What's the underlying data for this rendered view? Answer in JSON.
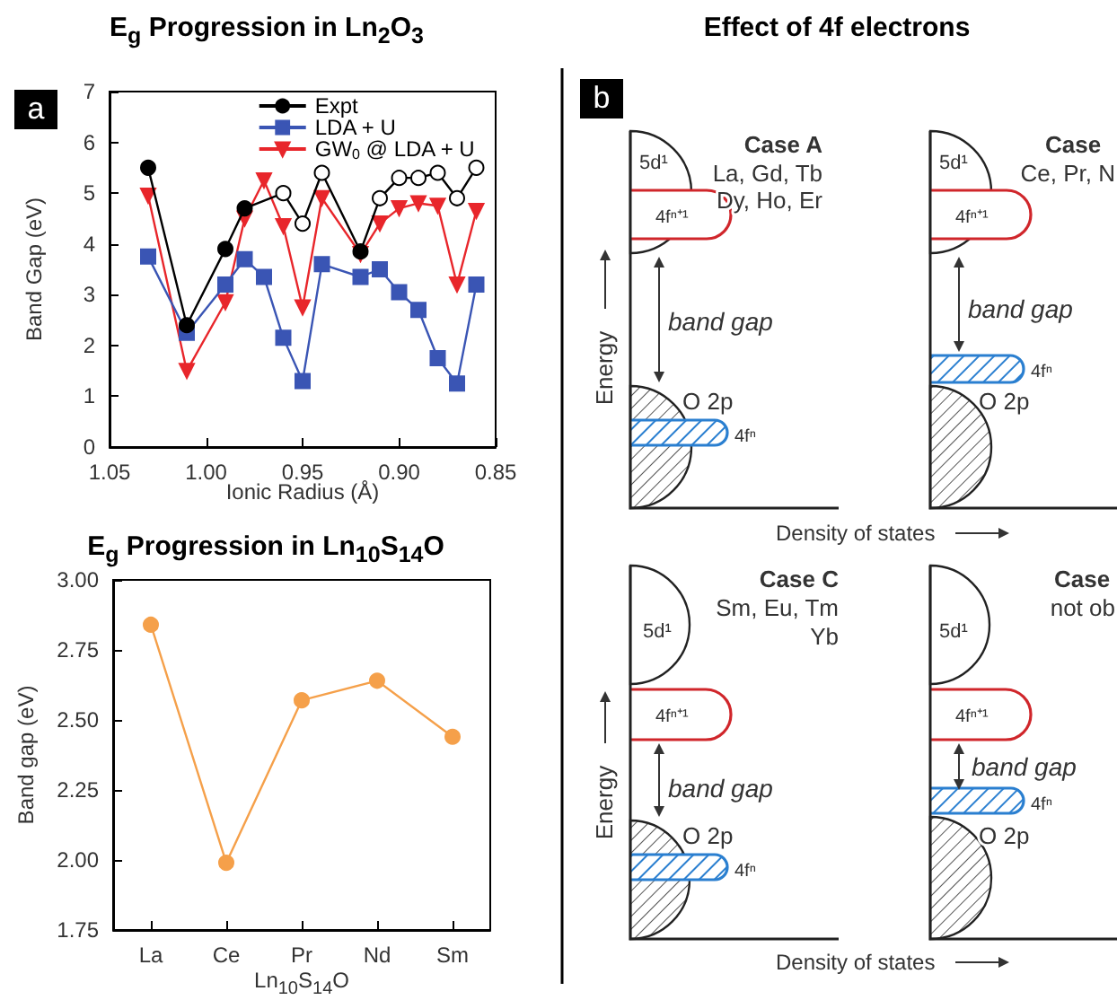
{
  "chart_data": [
    {
      "type": "line",
      "title": "E$_{g}$ Progression in Ln$_{2}$O$_{3}$",
      "xlabel": "Ionic Radius (Å)",
      "ylabel": "Band Gap (eV)",
      "annotations": [
        "a"
      ],
      "xlim": [
        1.05,
        0.85
      ],
      "xticks": [
        {
          "value": 1.05,
          "label": "1.05"
        },
        {
          "value": 1.0,
          "label": "1.00"
        },
        {
          "value": 0.95,
          "label": "0.95"
        },
        {
          "value": 0.9,
          "label": "0.90"
        },
        {
          "value": 0.85,
          "label": "0.85"
        }
      ],
      "ylim": [
        0,
        7
      ],
      "yticks": [
        0,
        1,
        2,
        3,
        4,
        5,
        6,
        7
      ],
      "legend": "top right",
      "series": [
        {
          "name": "Expt",
          "color": "#000000",
          "marker": "circle",
          "x": [
            1.03,
            1.01,
            0.99,
            0.98,
            0.96,
            0.95,
            0.94,
            0.92,
            0.91,
            0.9,
            0.89,
            0.88,
            0.87,
            0.86
          ],
          "values": [
            5.5,
            2.4,
            3.9,
            4.7,
            5.0,
            4.4,
            5.4,
            3.85,
            4.9,
            5.3,
            5.3,
            5.4,
            4.9,
            5.5
          ],
          "colors": [
            "#000000",
            "#000000",
            "#000000",
            "#000000",
            "#ffffff",
            "#ffffff",
            "#ffffff",
            "#000000",
            "#ffffff",
            "#ffffff",
            "#ffffff",
            "#ffffff",
            "#ffffff",
            "#ffffff"
          ]
        },
        {
          "name": "LDA + U",
          "color": "#3a55b4",
          "marker": "square",
          "x": [
            1.03,
            1.01,
            0.99,
            0.98,
            0.97,
            0.96,
            0.95,
            0.94,
            0.92,
            0.91,
            0.9,
            0.89,
            0.88,
            0.87,
            0.86
          ],
          "values": [
            3.75,
            2.25,
            3.2,
            3.7,
            3.35,
            2.15,
            1.3,
            3.6,
            3.35,
            3.5,
            3.05,
            2.7,
            1.75,
            1.25,
            3.2
          ]
        },
        {
          "name": "GW$_{0}$ @ LDA + U",
          "color": "#e8262b",
          "marker": "triangle",
          "x": [
            1.03,
            1.01,
            0.99,
            0.98,
            0.97,
            0.96,
            0.95,
            0.94,
            0.92,
            0.91,
            0.9,
            0.89,
            0.88,
            0.87,
            0.86
          ],
          "values": [
            4.95,
            1.5,
            2.85,
            4.5,
            5.25,
            4.35,
            2.75,
            4.9,
            3.8,
            4.4,
            4.7,
            4.8,
            4.75,
            3.2,
            4.65
          ]
        }
      ]
    },
    {
      "type": "line",
      "title": "E$_{g}$ Progression in Ln$_{10}$S$_{14}$O",
      "xlabel": "Ln$_{10}$S$_{14}$O",
      "ylabel": "Band gap (eV)",
      "categories": [
        "La",
        "Ce",
        "Pr",
        "Nd",
        "Sm"
      ],
      "ylim": [
        1.75,
        3.0
      ],
      "yticks": [
        {
          "value": 1.75,
          "label": "1.75"
        },
        {
          "value": 2.0,
          "label": "2.00"
        },
        {
          "value": 2.25,
          "label": "2.25"
        },
        {
          "value": 2.5,
          "label": "2.50"
        },
        {
          "value": 2.75,
          "label": "2.75"
        },
        {
          "value": 3.0,
          "label": "3.00"
        }
      ],
      "series": [
        {
          "color": "#f5a04a",
          "marker": "circle",
          "values": [
            2.84,
            1.99,
            2.57,
            2.64,
            2.44
          ]
        }
      ]
    },
    {
      "type": "other",
      "title": "Effect of 4f electrons",
      "annotations": [
        "b",
        "Case A",
        "La, Gd, Tb",
        "Dy, Ho, Er",
        "5d¹",
        "4fⁿ⁺¹",
        "band gap",
        "O 2p",
        "4fⁿ",
        "Case",
        "Ce, Pr, N",
        "5d¹",
        "4fⁿ⁺¹",
        "band gap",
        "4fⁿ",
        "O 2p",
        "Energy",
        "Density of states",
        "Case C",
        "Sm, Eu, Tm",
        "Yb",
        "5d¹",
        "4fⁿ⁺¹",
        "band gap",
        "O 2p",
        "4fⁿ",
        "Case",
        "not ob",
        "5d¹",
        "4fⁿ⁺¹",
        "band gap",
        "4fⁿ",
        "O 2p",
        "Energy",
        "Density of states"
      ]
    }
  ]
}
